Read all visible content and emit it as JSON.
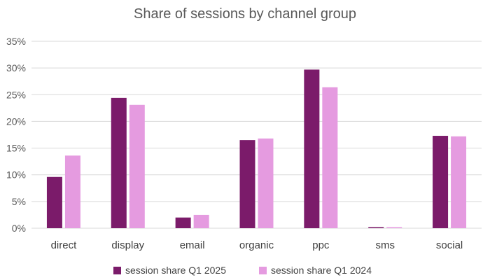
{
  "chart_data": {
    "type": "bar",
    "title": "Share of sessions by channel group",
    "categories": [
      "direct",
      "display",
      "email",
      "organic",
      "ppc",
      "sms",
      "social"
    ],
    "series": [
      {
        "name": "session share Q1 2025",
        "color": "#7b1b6a",
        "values": [
          9.6,
          24.4,
          2.0,
          16.5,
          29.7,
          0.2,
          17.3
        ]
      },
      {
        "name": "session share Q1 2024",
        "color": "#e59be0",
        "values": [
          13.6,
          23.1,
          2.5,
          16.8,
          26.4,
          0.2,
          17.2
        ]
      }
    ],
    "y_ticks": [
      "0%",
      "5%",
      "10%",
      "15%",
      "20%",
      "25%",
      "30%",
      "35%"
    ],
    "ylim": [
      0,
      35
    ],
    "grid": true,
    "legend": "bottom"
  }
}
